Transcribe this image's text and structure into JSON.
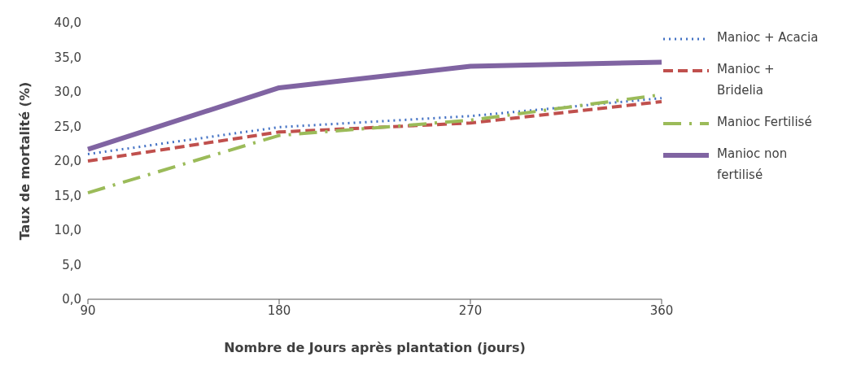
{
  "chart_data": {
    "type": "line",
    "xlabel": "Nombre de Jours après plantation (jours)",
    "ylabel": "Taux de mortalité (%)",
    "categories": [
      "90",
      "180",
      "270",
      "360"
    ],
    "series": [
      {
        "name": "Manioc + Acacia",
        "color": "#4472c4",
        "line_style": "dotted",
        "values": [
          21.0,
          24.9,
          26.5,
          29.1
        ]
      },
      {
        "name": "Manioc + Bridelia",
        "color": "#c0504d",
        "line_style": "dashed",
        "values": [
          20.0,
          24.2,
          25.5,
          28.6
        ]
      },
      {
        "name": "Manioc Fertilisé",
        "color": "#9bbb59",
        "line_style": "dashdot",
        "values": [
          15.4,
          23.7,
          25.9,
          29.6
        ]
      },
      {
        "name": "Manioc non fertilisé",
        "color": "#8064a2",
        "line_style": "solid",
        "values": [
          21.7,
          30.6,
          33.7,
          34.3
        ]
      }
    ],
    "ylim": [
      0,
      40
    ],
    "yticks": [
      {
        "value": 0,
        "label": "0,0"
      },
      {
        "value": 5,
        "label": "5,0"
      },
      {
        "value": 10,
        "label": "10,0"
      },
      {
        "value": 15,
        "label": "15,0"
      },
      {
        "value": 20,
        "label": "20,0"
      },
      {
        "value": 25,
        "label": "25,0"
      },
      {
        "value": 30,
        "label": "30,0"
      },
      {
        "value": 35,
        "label": "35,0"
      },
      {
        "value": 40,
        "label": "40,0"
      }
    ],
    "grid": false,
    "legend": "right",
    "marker": "none"
  }
}
